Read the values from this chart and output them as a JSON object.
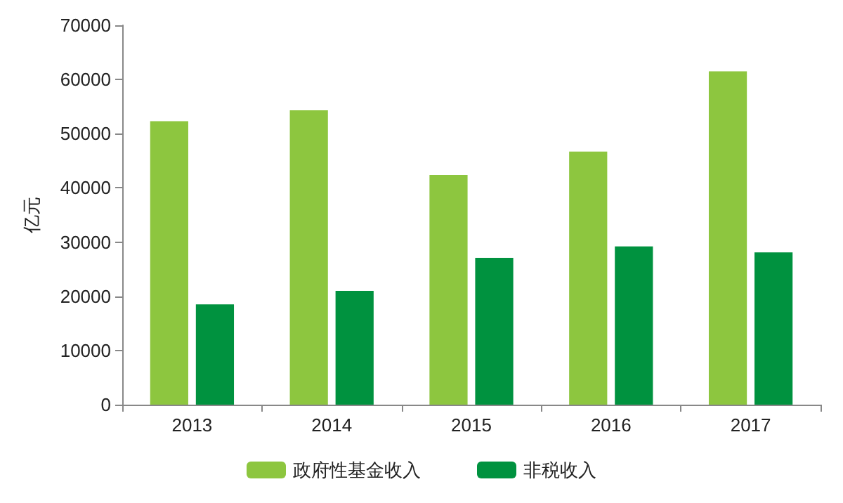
{
  "chart_data": {
    "type": "bar",
    "ylabel": "亿元",
    "categories": [
      "2013",
      "2014",
      "2015",
      "2016",
      "2017"
    ],
    "series": [
      {
        "name": "政府性基金收入",
        "color": "#8dc63f",
        "values": [
          52300,
          54300,
          42400,
          46700,
          61500
        ]
      },
      {
        "name": "非税收入",
        "color": "#00923f",
        "values": [
          18500,
          21000,
          27100,
          29200,
          28100
        ]
      }
    ],
    "ylim": [
      0,
      70000
    ],
    "yticks": [
      0,
      10000,
      20000,
      30000,
      40000,
      50000,
      60000,
      70000
    ],
    "grid": false,
    "legend": "bottom"
  }
}
